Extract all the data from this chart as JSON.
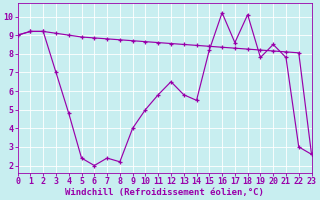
{
  "x": [
    0,
    1,
    2,
    3,
    4,
    5,
    6,
    7,
    8,
    9,
    10,
    11,
    12,
    13,
    14,
    15,
    16,
    17,
    18,
    19,
    20,
    21,
    22,
    23
  ],
  "line_upper": [
    9.0,
    9.2,
    9.2,
    9.1,
    9.0,
    8.9,
    8.85,
    8.8,
    8.75,
    8.7,
    8.65,
    8.6,
    8.55,
    8.5,
    8.45,
    8.4,
    8.35,
    8.3,
    8.25,
    8.2,
    8.15,
    8.1,
    8.05,
    2.6
  ],
  "line_lower": [
    9.0,
    9.2,
    9.2,
    7.0,
    4.8,
    2.4,
    2.0,
    2.4,
    2.2,
    4.0,
    5.0,
    5.8,
    6.5,
    5.8,
    5.5,
    8.2,
    10.2,
    8.6,
    10.1,
    7.8,
    8.5,
    7.8,
    3.0,
    2.6
  ],
  "color": "#9900aa",
  "bg_color": "#c8eef0",
  "grid_color": "#ffffff",
  "xlabel": "Windchill (Refroidissement éolien,°C)",
  "xlabel_fontsize": 6.5,
  "tick_fontsize": 6.0,
  "xlim": [
    0,
    23
  ],
  "ylim": [
    1.6,
    10.7
  ],
  "yticks": [
    2,
    3,
    4,
    5,
    6,
    7,
    8,
    9,
    10
  ],
  "xticks": [
    0,
    1,
    2,
    3,
    4,
    5,
    6,
    7,
    8,
    9,
    10,
    11,
    12,
    13,
    14,
    15,
    16,
    17,
    18,
    19,
    20,
    21,
    22,
    23
  ]
}
